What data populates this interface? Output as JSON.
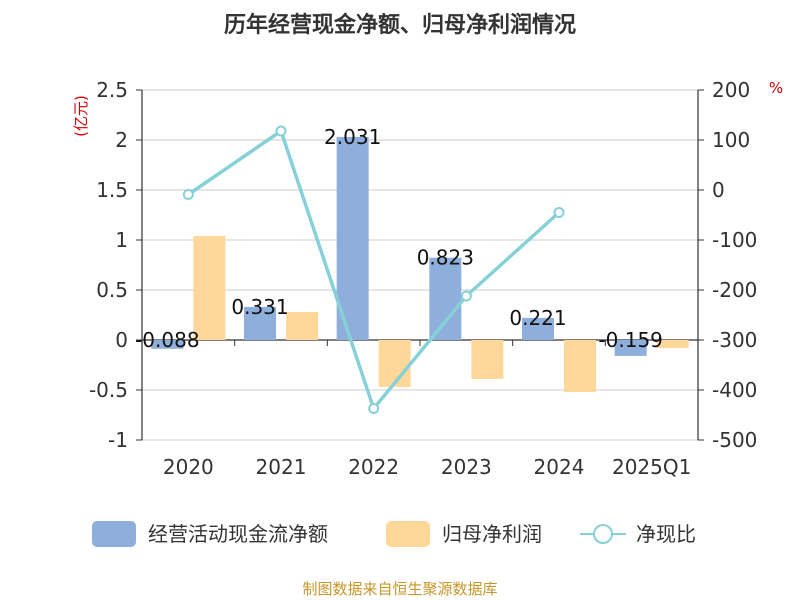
{
  "chart_data": {
    "type": "bar",
    "title": "历年经营现金净额、归母净利润情况",
    "categories": [
      "2020",
      "2021",
      "2022",
      "2023",
      "2024",
      "2025Q1"
    ],
    "left_unit": "(亿元)",
    "right_unit": "%",
    "ylim_left": [
      -1,
      2.5
    ],
    "yticks_left": [
      "2.5",
      "2",
      "1.5",
      "1",
      "0.5",
      "0",
      "-0.5",
      "-1"
    ],
    "ylim_right": [
      -500,
      200
    ],
    "yticks_right": [
      "200",
      "100",
      "0",
      "-100",
      "-200",
      "-300",
      "-400",
      "-500"
    ],
    "grid": true,
    "legend_position": "bottom",
    "series": [
      {
        "name": "经营活动现金流净额",
        "type": "bar",
        "axis": "left",
        "color": "#8eaedb",
        "values": [
          -0.088,
          0.331,
          2.031,
          0.823,
          0.221,
          -0.159
        ],
        "labels": [
          "-0.088",
          "0.331",
          "2.031",
          "0.823",
          "0.221",
          "-0.159"
        ]
      },
      {
        "name": "归母净利润",
        "type": "bar",
        "axis": "left",
        "color": "#ffd899",
        "values": [
          1.04,
          0.28,
          -0.47,
          -0.39,
          -0.52,
          -0.08
        ]
      },
      {
        "name": "净现比",
        "type": "line",
        "axis": "right",
        "color": "#86d1d8",
        "values": [
          -9,
          118,
          -437,
          -212,
          -45,
          null
        ]
      }
    ]
  },
  "source_text": "制图数据来自恒生聚源数据库"
}
